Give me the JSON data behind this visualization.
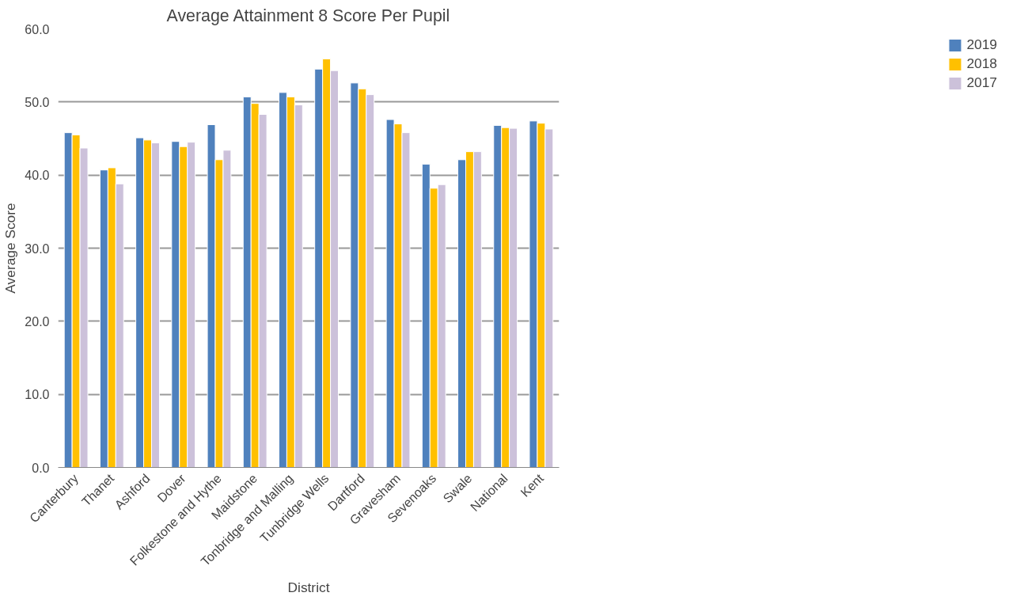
{
  "chart_data": {
    "type": "bar",
    "title": "Average Attainment 8 Score Per Pupil",
    "xlabel": "District",
    "ylabel": "Average Score",
    "categories": [
      "Canterbury",
      "Thanet",
      "Ashford",
      "Dover",
      "Folkestone and Hythe",
      "Maidstone",
      "Tonbridge and Malling",
      "Tunbridge Wells",
      "Dartford",
      "Gravesham",
      "Sevenoaks",
      "Swale",
      "National",
      "Kent"
    ],
    "series": [
      {
        "name": "2019",
        "color": "#4f81bd",
        "values": [
          45.8,
          40.7,
          45.1,
          44.6,
          46.9,
          50.7,
          51.3,
          54.5,
          52.6,
          47.6,
          41.5,
          42.1,
          46.8,
          47.4
        ]
      },
      {
        "name": "2018",
        "color": "#ffc000",
        "values": [
          45.5,
          41.0,
          44.8,
          43.9,
          42.1,
          49.8,
          50.7,
          55.9,
          51.8,
          47.0,
          38.2,
          43.2,
          46.5,
          47.1
        ]
      },
      {
        "name": "2017",
        "color": "#ccc1da",
        "values": [
          43.7,
          38.8,
          44.4,
          44.5,
          43.4,
          48.3,
          49.6,
          54.3,
          51.0,
          45.8,
          38.7,
          43.2,
          46.4,
          46.3
        ]
      }
    ],
    "ylim": [
      0,
      60
    ],
    "yticks": [
      {
        "value": 0,
        "label": "0.0"
      },
      {
        "value": 10,
        "label": "10.0"
      },
      {
        "value": 20,
        "label": "20.0"
      },
      {
        "value": 30,
        "label": "30.0"
      },
      {
        "value": 40,
        "label": "40.0"
      },
      {
        "value": 50,
        "label": "50.0"
      },
      {
        "value": 60,
        "label": "60.0"
      }
    ],
    "grid": "y",
    "legend": "right"
  }
}
